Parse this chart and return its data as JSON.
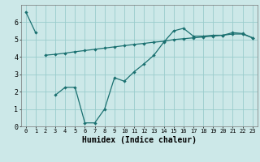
{
  "title": "",
  "xlabel": "Humidex (Indice chaleur)",
  "bg_color": "#cce8e8",
  "grid_color": "#99cccc",
  "line_color": "#1a7070",
  "xlim": [
    -0.5,
    23.5
  ],
  "ylim": [
    0,
    7
  ],
  "line1_x": [
    0,
    1
  ],
  "line1_y": [
    6.6,
    5.4
  ],
  "line2_x": [
    2,
    3,
    4,
    5,
    6,
    7,
    8,
    9,
    10,
    11,
    12,
    13,
    14,
    15,
    16,
    17,
    18,
    19,
    20,
    21,
    22,
    23
  ],
  "line2_y": [
    4.1,
    4.15,
    4.22,
    4.3,
    4.37,
    4.44,
    4.51,
    4.58,
    4.65,
    4.72,
    4.78,
    4.85,
    4.9,
    5.0,
    5.05,
    5.1,
    5.15,
    5.2,
    5.25,
    5.32,
    5.32,
    5.1
  ],
  "line3_x": [
    3,
    4,
    5,
    6,
    7,
    8,
    9,
    10,
    11,
    12,
    13,
    14,
    15,
    16,
    17,
    18,
    19,
    20,
    21,
    22,
    23
  ],
  "line3_y": [
    1.8,
    2.25,
    2.25,
    0.2,
    0.2,
    1.0,
    2.8,
    2.6,
    3.15,
    3.6,
    4.1,
    4.85,
    5.5,
    5.65,
    5.2,
    5.2,
    5.25,
    5.25,
    5.4,
    5.35,
    5.1
  ],
  "xtick_fontsize": 5,
  "ytick_fontsize": 6,
  "xlabel_fontsize": 7,
  "linewidth": 0.9,
  "markersize": 2.2
}
